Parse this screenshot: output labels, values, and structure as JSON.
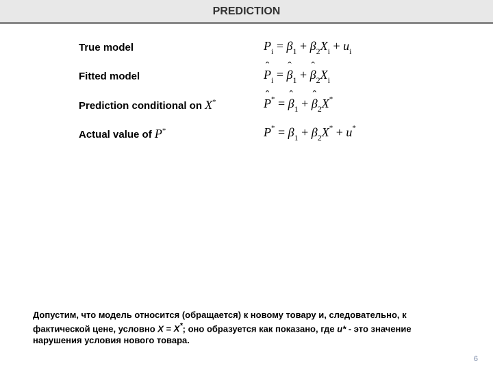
{
  "title": "PREDICTION",
  "rows": {
    "true_model": {
      "label": "True model"
    },
    "fitted_model": {
      "label": "Fitted model"
    },
    "prediction_conditional": {
      "label_prefix": "Prediction conditional on "
    },
    "actual_value": {
      "label_prefix": "Actual value of  "
    }
  },
  "footer": {
    "text_parts": {
      "p1": "Допустим, что модель относится (обращается) к новому товару и, следовательно, к фактической цене, условно ",
      "x_eq": "X",
      "eq": " = ",
      "x_star": "X",
      "p2": ";  оно образуется как показано, где ",
      "u_star": "u",
      "p3": " - это значение нарушения условия нового товара."
    }
  },
  "page_number": "6",
  "colors": {
    "title_bg": "#e8e8e8",
    "title_border": "#888888",
    "text": "#000000",
    "page_num": "#7a8aa8"
  },
  "typography": {
    "title_fontsize": 16,
    "label_fontsize": 15,
    "equation_fontsize": 18,
    "footer_fontsize": 13
  }
}
